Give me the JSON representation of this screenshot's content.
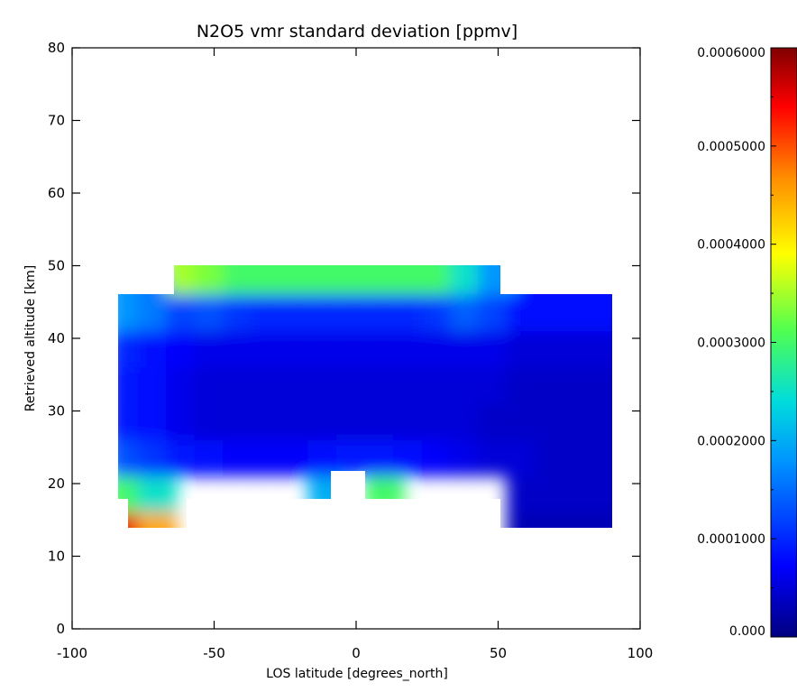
{
  "chart_data": {
    "type": "heatmap",
    "title": "N2O5 vmr standard deviation [ppmv]",
    "xlabel": "LOS latitude [degrees_north]",
    "ylabel": "Retrieved altitude [km]",
    "xlim": [
      -100,
      100
    ],
    "ylim": [
      0,
      80
    ],
    "x_ticks": [
      "-100",
      "-50",
      "0",
      "50",
      "100"
    ],
    "x_tick_values": [
      -100,
      -50,
      0,
      50,
      100
    ],
    "y_ticks": [
      "0",
      "10",
      "20",
      "30",
      "40",
      "50",
      "60",
      "70",
      "80"
    ],
    "y_tick_values": [
      0,
      10,
      20,
      30,
      40,
      50,
      60,
      70,
      80
    ],
    "colorbar": {
      "range": [
        0,
        0.0006
      ],
      "colormap": "rainbow (dark blue to dark red)",
      "tick_labels": [
        "0.000",
        "0.0001000",
        "0.0002000",
        "0.0003000",
        "0.0004000",
        "0.0005000",
        "0.0006000"
      ],
      "tick_values": [
        0,
        0.0001,
        0.0002,
        0.0003,
        0.0004,
        0.0005,
        0.0006
      ]
    },
    "grid": false,
    "latitudes": [
      -80,
      -70,
      -60,
      -50,
      -40,
      -30,
      -20,
      -10,
      0,
      10,
      20,
      30,
      40,
      50,
      60,
      70,
      80,
      90
    ],
    "altitudes": [
      15,
      20,
      25,
      30,
      35,
      40,
      45,
      50
    ],
    "values_ppmv": [
      [
        0.00055,
        0.00045,
        null,
        null,
        null,
        null,
        null,
        null,
        null,
        null,
        null,
        null,
        null,
        null,
        3e-05,
        3e-05,
        3e-05,
        3e-05
      ],
      [
        0.0003,
        0.00025,
        null,
        null,
        null,
        null,
        null,
        0.0002,
        null,
        0.0003,
        null,
        null,
        null,
        null,
        4e-05,
        4e-05,
        4e-05,
        4e-05
      ],
      [
        0.00013,
        0.00011,
        9e-05,
        8e-05,
        7e-05,
        7e-05,
        7e-05,
        8e-05,
        9e-05,
        9e-05,
        8e-05,
        7e-05,
        6e-05,
        5e-05,
        5e-05,
        4e-05,
        4e-05,
        4e-05
      ],
      [
        9e-05,
        8e-05,
        6e-05,
        5e-05,
        5e-05,
        5e-05,
        5e-05,
        5e-05,
        5e-05,
        5e-05,
        5e-05,
        5e-05,
        5e-05,
        4e-05,
        4e-05,
        4e-05,
        4e-05,
        4e-05
      ],
      [
        9e-05,
        8e-05,
        6e-05,
        5e-05,
        5e-05,
        5e-05,
        5e-05,
        5e-05,
        5e-05,
        5e-05,
        5e-05,
        5e-05,
        5e-05,
        5e-05,
        4e-05,
        4e-05,
        4e-05,
        4e-05
      ],
      [
        0.0001,
        8e-05,
        7e-05,
        6e-05,
        6e-05,
        6e-05,
        6e-05,
        6e-05,
        6e-05,
        6e-05,
        6e-05,
        6e-05,
        6e-05,
        6e-05,
        5e-05,
        5e-05,
        5e-05,
        5e-05
      ],
      [
        0.00018,
        0.00016,
        0.00012,
        0.00013,
        0.00011,
        0.0001,
        0.0001,
        0.0001,
        0.0001,
        0.0001,
        0.0001,
        0.00011,
        0.00014,
        0.00012,
        8e-05,
        8e-05,
        8e-05,
        8e-05
      ],
      [
        null,
        null,
        0.00035,
        0.00033,
        0.0003,
        0.0003,
        0.0003,
        0.0003,
        0.0003,
        0.0003,
        0.0003,
        0.0003,
        0.00025,
        0.00018,
        null,
        null,
        null,
        null
      ]
    ]
  }
}
